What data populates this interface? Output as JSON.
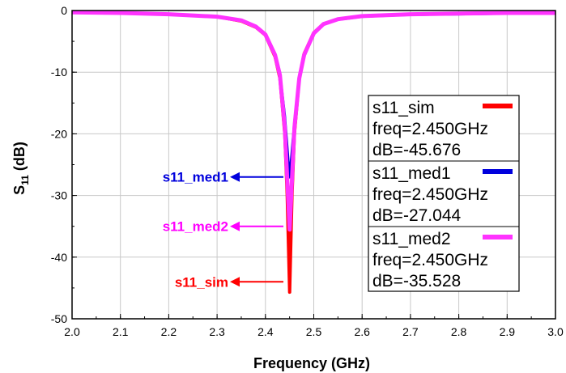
{
  "chart_data": {
    "type": "line",
    "xlabel": "Frequency (GHz)",
    "ylabel": "S",
    "ylabel_sub": "11",
    "ylabel_unit": "(dB)",
    "xlim": [
      2.0,
      3.0
    ],
    "ylim": [
      -50,
      0
    ],
    "xticks": [
      "2.0",
      "2.1",
      "2.2",
      "2.3",
      "2.4",
      "2.5",
      "2.6",
      "2.7",
      "2.8",
      "2.9",
      "3.0"
    ],
    "yticks": [
      "0",
      "-10",
      "-20",
      "-30",
      "-40",
      "-50"
    ],
    "grid": true,
    "series": [
      {
        "name": "s11_sim",
        "color": "#ff0000",
        "marker": {
          "freq": "freq=2.450GHz",
          "db": "dB=-45.676"
        },
        "points": [
          [
            2.0,
            -0.3
          ],
          [
            2.1,
            -0.4
          ],
          [
            2.2,
            -0.6
          ],
          [
            2.3,
            -1.0
          ],
          [
            2.35,
            -1.7
          ],
          [
            2.38,
            -2.7
          ],
          [
            2.4,
            -4.0
          ],
          [
            2.42,
            -7.5
          ],
          [
            2.43,
            -11.0
          ],
          [
            2.44,
            -20.0
          ],
          [
            2.445,
            -30.0
          ],
          [
            2.45,
            -45.676
          ],
          [
            2.455,
            -30.0
          ],
          [
            2.46,
            -20.0
          ],
          [
            2.47,
            -11.0
          ],
          [
            2.48,
            -7.0
          ],
          [
            2.5,
            -3.6
          ],
          [
            2.52,
            -2.2
          ],
          [
            2.55,
            -1.4
          ],
          [
            2.6,
            -0.9
          ],
          [
            2.7,
            -0.6
          ],
          [
            2.8,
            -0.5
          ],
          [
            2.9,
            -0.4
          ],
          [
            3.0,
            -0.4
          ]
        ]
      },
      {
        "name": "s11_med1",
        "color": "#0000dd",
        "marker": {
          "freq": "freq=2.450GHz",
          "db": "dB=-27.044"
        },
        "points": [
          [
            2.0,
            -0.3
          ],
          [
            2.1,
            -0.4
          ],
          [
            2.2,
            -0.6
          ],
          [
            2.3,
            -1.0
          ],
          [
            2.35,
            -1.6
          ],
          [
            2.38,
            -2.6
          ],
          [
            2.4,
            -3.8
          ],
          [
            2.42,
            -7.0
          ],
          [
            2.43,
            -10.0
          ],
          [
            2.44,
            -17.0
          ],
          [
            2.45,
            -27.044
          ],
          [
            2.46,
            -18.0
          ],
          [
            2.47,
            -11.0
          ],
          [
            2.48,
            -7.5
          ],
          [
            2.5,
            -3.8
          ],
          [
            2.52,
            -2.3
          ],
          [
            2.55,
            -1.5
          ],
          [
            2.6,
            -1.0
          ],
          [
            2.7,
            -0.7
          ],
          [
            2.8,
            -0.6
          ],
          [
            2.9,
            -0.5
          ],
          [
            3.0,
            -0.5
          ]
        ]
      },
      {
        "name": "s11_med2",
        "color": "#ff33ff",
        "marker": {
          "freq": "freq=2.450GHz",
          "db": "dB=-35.528"
        },
        "points": [
          [
            2.0,
            -0.3
          ],
          [
            2.1,
            -0.4
          ],
          [
            2.2,
            -0.6
          ],
          [
            2.3,
            -1.0
          ],
          [
            2.35,
            -1.6
          ],
          [
            2.38,
            -2.6
          ],
          [
            2.4,
            -3.9
          ],
          [
            2.42,
            -7.2
          ],
          [
            2.43,
            -10.5
          ],
          [
            2.44,
            -19.0
          ],
          [
            2.45,
            -35.528
          ],
          [
            2.46,
            -19.0
          ],
          [
            2.47,
            -11.0
          ],
          [
            2.48,
            -7.2
          ],
          [
            2.5,
            -3.7
          ],
          [
            2.52,
            -2.2
          ],
          [
            2.55,
            -1.4
          ],
          [
            2.6,
            -0.9
          ],
          [
            2.7,
            -0.6
          ],
          [
            2.8,
            -0.5
          ],
          [
            2.9,
            -0.4
          ],
          [
            3.0,
            -0.4
          ]
        ]
      }
    ],
    "annotations": [
      {
        "text": "s11_med1",
        "color": "#0000dd",
        "y": -27
      },
      {
        "text": "s11_med2",
        "color": "#ff00ff",
        "y": -35
      },
      {
        "text": "s11_sim",
        "color": "#ff0000",
        "y": -44
      }
    ]
  }
}
